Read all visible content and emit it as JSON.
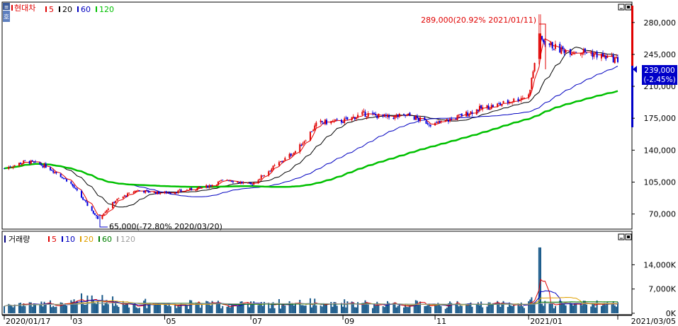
{
  "price_panel": {
    "symbol": "현대차",
    "ma_labels": [
      "5",
      "20",
      "60",
      "120"
    ],
    "ma_colors": [
      "#e00000",
      "#000000",
      "#0000c0",
      "#00c000"
    ],
    "high_annotation": "289,000(20.92% 2021/01/11)",
    "low_annotation": "65,000(-72.80% 2020/03/20)",
    "last_price": "239,000",
    "last_change": "(-2.45%)",
    "y_ticks": [
      "280,000",
      "245,000",
      "210,000",
      "175,000",
      "140,000",
      "105,000",
      "70,000"
    ]
  },
  "volume_panel": {
    "title": "거래량",
    "ma_labels": [
      "5",
      "10",
      "20",
      "60",
      "120"
    ],
    "ma_colors": [
      "#e00000",
      "#0000c0",
      "#e0a000",
      "#008000",
      "#a0a0a0"
    ],
    "y_ticks": [
      "14,000K",
      "7,000K",
      "0K"
    ]
  },
  "x_axis": {
    "labels": [
      "2020/01/17",
      "03",
      "05",
      "07",
      "09",
      "11",
      "2021/01",
      "2021/03/05"
    ]
  },
  "colors": {
    "up": "#e00000",
    "down": "#0000e0",
    "frame": "#000000",
    "price_box_bg": "#0000c8"
  },
  "chart_data": {
    "type": "candlestick",
    "title": "현대차",
    "x_range": [
      "2020/01/17",
      "2021/03/05"
    ],
    "price_ylim": [
      55000,
      300000
    ],
    "closes_approx": [
      {
        "date": "2020/01/17",
        "value": 120000
      },
      {
        "date": "2020/02/01",
        "value": 128000
      },
      {
        "date": "2020/02/15",
        "value": 122000
      },
      {
        "date": "2020/03/01",
        "value": 105000
      },
      {
        "date": "2020/03/20",
        "value": 65000
      },
      {
        "date": "2020/04/01",
        "value": 85000
      },
      {
        "date": "2020/04/15",
        "value": 96000
      },
      {
        "date": "2020/05/01",
        "value": 93000
      },
      {
        "date": "2020/05/15",
        "value": 95000
      },
      {
        "date": "2020/06/01",
        "value": 100000
      },
      {
        "date": "2020/06/15",
        "value": 108000
      },
      {
        "date": "2020/07/01",
        "value": 102000
      },
      {
        "date": "2020/07/15",
        "value": 120000
      },
      {
        "date": "2020/08/01",
        "value": 140000
      },
      {
        "date": "2020/08/15",
        "value": 170000
      },
      {
        "date": "2020/09/01",
        "value": 172000
      },
      {
        "date": "2020/09/15",
        "value": 180000
      },
      {
        "date": "2020/10/01",
        "value": 176000
      },
      {
        "date": "2020/10/15",
        "value": 178000
      },
      {
        "date": "2020/11/01",
        "value": 168000
      },
      {
        "date": "2020/11/15",
        "value": 175000
      },
      {
        "date": "2020/12/01",
        "value": 185000
      },
      {
        "date": "2020/12/15",
        "value": 190000
      },
      {
        "date": "2021/01/04",
        "value": 200000
      },
      {
        "date": "2021/01/11",
        "value": 262000
      },
      {
        "date": "2021/01/25",
        "value": 250000
      },
      {
        "date": "2021/02/10",
        "value": 248000
      },
      {
        "date": "2021/02/25",
        "value": 242000
      },
      {
        "date": "2021/03/05",
        "value": 239000
      }
    ],
    "high": {
      "date": "2021/01/11",
      "value": 289000,
      "change": "20.92%"
    },
    "low": {
      "date": "2020/03/20",
      "value": 65000,
      "change": "-72.80%"
    },
    "last": {
      "value": 239000,
      "change": "-2.45%"
    },
    "volume_ylim": [
      0,
      20000
    ],
    "volume_unit": "K",
    "volume_peak": {
      "date": "2021/01/11",
      "value": 19000
    }
  }
}
